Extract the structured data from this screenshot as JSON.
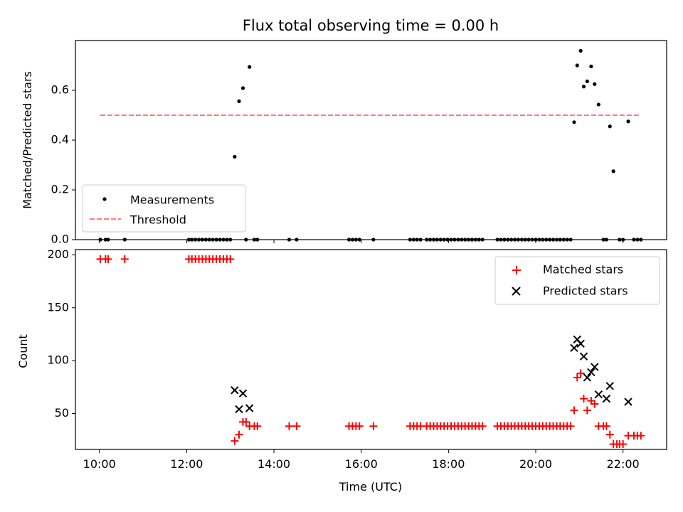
{
  "chart_data": {
    "title": "Flux total observing time = 0.00 h",
    "xlabel": "Time (UTC)",
    "x_unit": "hours UTC",
    "x_tick_labels": [
      {
        "value": 10,
        "label": "10:00"
      },
      {
        "value": 12,
        "label": "12:00"
      },
      {
        "value": 14,
        "label": "14:00"
      },
      {
        "value": 16,
        "label": "16:00"
      },
      {
        "value": 18,
        "label": "18:00"
      },
      {
        "value": 20,
        "label": "20:00"
      },
      {
        "value": 22,
        "label": "22:00"
      }
    ],
    "xlim": [
      9.45,
      23.0
    ],
    "panels": [
      {
        "type": "scatter",
        "ylabel": "Matched/Predicted stars",
        "ylim": [
          0,
          0.8
        ],
        "yticks": [
          0.0,
          0.2,
          0.4,
          0.6
        ],
        "ytick_labels": [
          "0.0",
          "0.2",
          "0.4",
          "0.6"
        ],
        "legend": "lower-left",
        "series": [
          {
            "name": "Measurements",
            "marker": "dot",
            "color": "#000000",
            "points": [
              [
                10.02,
                0
              ],
              [
                10.14,
                0
              ],
              [
                10.2,
                0
              ],
              [
                10.58,
                0
              ],
              [
                12.05,
                0
              ],
              [
                12.12,
                0
              ],
              [
                12.2,
                0
              ],
              [
                12.28,
                0
              ],
              [
                12.36,
                0
              ],
              [
                12.44,
                0
              ],
              [
                12.52,
                0
              ],
              [
                12.6,
                0
              ],
              [
                12.68,
                0
              ],
              [
                12.76,
                0
              ],
              [
                12.84,
                0
              ],
              [
                12.92,
                0
              ],
              [
                13.0,
                0
              ],
              [
                13.1,
                0.333
              ],
              [
                13.2,
                0.556
              ],
              [
                13.29,
                0.609
              ],
              [
                13.36,
                0
              ],
              [
                13.44,
                0.694
              ],
              [
                13.55,
                0
              ],
              [
                13.62,
                0
              ],
              [
                14.35,
                0
              ],
              [
                14.52,
                0
              ],
              [
                15.72,
                0
              ],
              [
                15.8,
                0
              ],
              [
                15.88,
                0
              ],
              [
                15.96,
                0
              ],
              [
                16.28,
                0
              ],
              [
                17.12,
                0
              ],
              [
                17.2,
                0
              ],
              [
                17.28,
                0
              ],
              [
                17.36,
                0
              ],
              [
                17.5,
                0
              ],
              [
                17.58,
                0
              ],
              [
                17.66,
                0
              ],
              [
                17.74,
                0
              ],
              [
                17.82,
                0
              ],
              [
                17.9,
                0
              ],
              [
                17.98,
                0
              ],
              [
                18.06,
                0
              ],
              [
                18.14,
                0
              ],
              [
                18.22,
                0
              ],
              [
                18.3,
                0
              ],
              [
                18.38,
                0
              ],
              [
                18.46,
                0
              ],
              [
                18.54,
                0
              ],
              [
                18.62,
                0
              ],
              [
                18.7,
                0
              ],
              [
                18.78,
                0
              ],
              [
                19.12,
                0
              ],
              [
                19.2,
                0
              ],
              [
                19.28,
                0
              ],
              [
                19.36,
                0
              ],
              [
                19.44,
                0
              ],
              [
                19.52,
                0
              ],
              [
                19.6,
                0
              ],
              [
                19.68,
                0
              ],
              [
                19.76,
                0
              ],
              [
                19.84,
                0
              ],
              [
                19.92,
                0
              ],
              [
                20.0,
                0
              ],
              [
                20.08,
                0
              ],
              [
                20.16,
                0
              ],
              [
                20.24,
                0
              ],
              [
                20.32,
                0
              ],
              [
                20.4,
                0
              ],
              [
                20.48,
                0
              ],
              [
                20.56,
                0
              ],
              [
                20.64,
                0
              ],
              [
                20.72,
                0
              ],
              [
                20.8,
                0
              ],
              [
                20.88,
                0.472
              ],
              [
                20.95,
                0.7
              ],
              [
                21.03,
                0.759
              ],
              [
                21.1,
                0.615
              ],
              [
                21.18,
                0.636
              ],
              [
                21.27,
                0.696
              ],
              [
                21.35,
                0.625
              ],
              [
                21.44,
                0.543
              ],
              [
                21.55,
                0
              ],
              [
                21.62,
                0
              ],
              [
                21.7,
                0.455
              ],
              [
                21.78,
                0.275
              ],
              [
                21.92,
                0
              ],
              [
                22.0,
                0
              ],
              [
                22.12,
                0.475
              ],
              [
                22.25,
                0
              ],
              [
                22.33,
                0
              ],
              [
                22.41,
                0
              ]
            ]
          },
          {
            "name": "Threshold",
            "type": "line",
            "style": "dashed",
            "color": "#ff7a7a",
            "points": [
              [
                10.02,
                0.5
              ],
              [
                22.41,
                0.5
              ]
            ]
          }
        ]
      },
      {
        "type": "scatter",
        "ylabel": "Count",
        "ylim": [
          16,
          205
        ],
        "yticks": [
          50,
          100,
          150,
          200
        ],
        "ytick_labels": [
          "50",
          "100",
          "150",
          "200"
        ],
        "legend": "top-right",
        "series": [
          {
            "name": "Matched stars",
            "marker": "plus",
            "color": "#ff0000",
            "points": [
              [
                10.02,
                196
              ],
              [
                10.14,
                196
              ],
              [
                10.2,
                196
              ],
              [
                10.58,
                196
              ],
              [
                12.05,
                196
              ],
              [
                12.12,
                196
              ],
              [
                12.2,
                196
              ],
              [
                12.28,
                196
              ],
              [
                12.36,
                196
              ],
              [
                12.44,
                196
              ],
              [
                12.52,
                196
              ],
              [
                12.6,
                196
              ],
              [
                12.68,
                196
              ],
              [
                12.76,
                196
              ],
              [
                12.84,
                196
              ],
              [
                12.92,
                196
              ],
              [
                13.0,
                196
              ],
              [
                13.1,
                24
              ],
              [
                13.2,
                30
              ],
              [
                13.29,
                42
              ],
              [
                13.36,
                42
              ],
              [
                13.44,
                38
              ],
              [
                13.55,
                38
              ],
              [
                13.62,
                38
              ],
              [
                14.35,
                38
              ],
              [
                14.52,
                38
              ],
              [
                15.72,
                38
              ],
              [
                15.8,
                38
              ],
              [
                15.88,
                38
              ],
              [
                15.96,
                38
              ],
              [
                16.28,
                38
              ],
              [
                17.12,
                38
              ],
              [
                17.2,
                38
              ],
              [
                17.28,
                38
              ],
              [
                17.36,
                38
              ],
              [
                17.5,
                38
              ],
              [
                17.58,
                38
              ],
              [
                17.66,
                38
              ],
              [
                17.74,
                38
              ],
              [
                17.82,
                38
              ],
              [
                17.9,
                38
              ],
              [
                17.98,
                38
              ],
              [
                18.06,
                38
              ],
              [
                18.14,
                38
              ],
              [
                18.22,
                38
              ],
              [
                18.3,
                38
              ],
              [
                18.38,
                38
              ],
              [
                18.46,
                38
              ],
              [
                18.54,
                38
              ],
              [
                18.62,
                38
              ],
              [
                18.7,
                38
              ],
              [
                18.78,
                38
              ],
              [
                19.12,
                38
              ],
              [
                19.2,
                38
              ],
              [
                19.28,
                38
              ],
              [
                19.36,
                38
              ],
              [
                19.44,
                38
              ],
              [
                19.52,
                38
              ],
              [
                19.6,
                38
              ],
              [
                19.68,
                38
              ],
              [
                19.76,
                38
              ],
              [
                19.84,
                38
              ],
              [
                19.92,
                38
              ],
              [
                20.0,
                38
              ],
              [
                20.08,
                38
              ],
              [
                20.16,
                38
              ],
              [
                20.24,
                38
              ],
              [
                20.32,
                38
              ],
              [
                20.4,
                38
              ],
              [
                20.48,
                38
              ],
              [
                20.56,
                38
              ],
              [
                20.64,
                38
              ],
              [
                20.72,
                38
              ],
              [
                20.8,
                38
              ],
              [
                20.88,
                53
              ],
              [
                20.95,
                84
              ],
              [
                21.03,
                88
              ],
              [
                21.1,
                64
              ],
              [
                21.18,
                53
              ],
              [
                21.27,
                62
              ],
              [
                21.35,
                59
              ],
              [
                21.44,
                38
              ],
              [
                21.55,
                38
              ],
              [
                21.62,
                38
              ],
              [
                21.7,
                30
              ],
              [
                21.78,
                21
              ],
              [
                21.86,
                21
              ],
              [
                21.92,
                21
              ],
              [
                22.0,
                21
              ],
              [
                22.12,
                29
              ],
              [
                22.25,
                29
              ],
              [
                22.33,
                29
              ],
              [
                22.41,
                29
              ]
            ]
          },
          {
            "name": "Predicted stars",
            "marker": "x",
            "color": "#000000",
            "points": [
              [
                13.1,
                72
              ],
              [
                13.2,
                54
              ],
              [
                13.29,
                69
              ],
              [
                13.44,
                55
              ],
              [
                20.88,
                112
              ],
              [
                20.95,
                120
              ],
              [
                21.03,
                116
              ],
              [
                21.1,
                104
              ],
              [
                21.18,
                84
              ],
              [
                21.27,
                89
              ],
              [
                21.35,
                94
              ],
              [
                21.44,
                68
              ],
              [
                21.62,
                64
              ],
              [
                21.7,
                76
              ],
              [
                22.12,
                61
              ]
            ]
          }
        ]
      }
    ]
  }
}
